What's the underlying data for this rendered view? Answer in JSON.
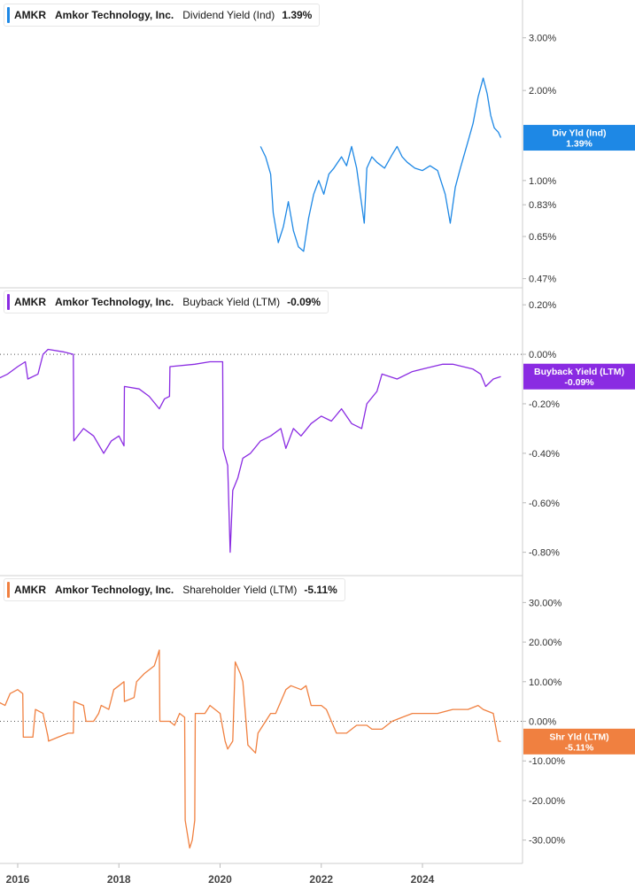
{
  "x_axis": {
    "tick_labels": [
      "2016",
      "2018",
      "2020",
      "2022",
      "2024"
    ]
  },
  "chart_data": [
    {
      "type": "line",
      "ticker": "AMKR",
      "company": "Amkor Technology, Inc.",
      "metric": "Dividend Yield (Ind)",
      "current_value": "1.39%",
      "color": "#1e88e5",
      "scale": "log",
      "ylim": [
        0.45,
        3.8
      ],
      "y_ticks": [
        3.0,
        2.0,
        1.0,
        0.83,
        0.65,
        0.47
      ],
      "y_tick_labels": [
        "3.00%",
        "2.00%",
        "1.00%",
        "0.83%",
        "0.65%",
        "0.47%"
      ],
      "tag": {
        "label": "Div Yld (Ind)",
        "value": "1.39%",
        "y": 1.39
      },
      "series": [
        {
          "values": [
            [
              2020.8,
              1.3
            ],
            [
              2020.9,
              1.2
            ],
            [
              2021.0,
              1.05
            ],
            [
              2021.05,
              0.78
            ],
            [
              2021.15,
              0.62
            ],
            [
              2021.25,
              0.7
            ],
            [
              2021.35,
              0.85
            ],
            [
              2021.45,
              0.68
            ],
            [
              2021.55,
              0.6
            ],
            [
              2021.65,
              0.58
            ],
            [
              2021.75,
              0.75
            ],
            [
              2021.85,
              0.9
            ],
            [
              2021.95,
              1.0
            ],
            [
              2022.05,
              0.9
            ],
            [
              2022.15,
              1.05
            ],
            [
              2022.25,
              1.1
            ],
            [
              2022.4,
              1.2
            ],
            [
              2022.5,
              1.12
            ],
            [
              2022.6,
              1.3
            ],
            [
              2022.7,
              1.1
            ],
            [
              2022.85,
              0.72
            ],
            [
              2022.9,
              1.1
            ],
            [
              2023.0,
              1.2
            ],
            [
              2023.1,
              1.15
            ],
            [
              2023.25,
              1.1
            ],
            [
              2023.4,
              1.22
            ],
            [
              2023.5,
              1.3
            ],
            [
              2023.6,
              1.2
            ],
            [
              2023.7,
              1.15
            ],
            [
              2023.85,
              1.1
            ],
            [
              2024.0,
              1.08
            ],
            [
              2024.15,
              1.12
            ],
            [
              2024.3,
              1.08
            ],
            [
              2024.45,
              0.9
            ],
            [
              2024.55,
              0.72
            ],
            [
              2024.65,
              0.95
            ],
            [
              2024.75,
              1.1
            ],
            [
              2024.9,
              1.35
            ],
            [
              2025.0,
              1.55
            ],
            [
              2025.1,
              1.9
            ],
            [
              2025.2,
              2.2
            ],
            [
              2025.28,
              1.95
            ],
            [
              2025.35,
              1.65
            ],
            [
              2025.42,
              1.5
            ],
            [
              2025.5,
              1.45
            ],
            [
              2025.55,
              1.39
            ]
          ]
        }
      ]
    },
    {
      "type": "line",
      "ticker": "AMKR",
      "company": "Amkor Technology, Inc.",
      "metric": "Buyback Yield (LTM)",
      "current_value": "-0.09%",
      "color": "#8a2be2",
      "ylim": [
        -0.88,
        0.24
      ],
      "y_ticks": [
        0.2,
        0.0,
        -0.2,
        -0.4,
        -0.6,
        -0.8
      ],
      "y_tick_labels": [
        "0.20%",
        "0.00%",
        "-0.20%",
        "-0.40%",
        "-0.60%",
        "-0.80%"
      ],
      "zero_line": true,
      "tag": {
        "label": "Buyback Yield (LTM)",
        "value": "-0.09%",
        "y": -0.09
      },
      "series": [
        {
          "values": [
            [
              2015.6,
              -0.1
            ],
            [
              2015.8,
              -0.08
            ],
            [
              2016.0,
              -0.05
            ],
            [
              2016.15,
              -0.03
            ],
            [
              2016.2,
              -0.1
            ],
            [
              2016.4,
              -0.08
            ],
            [
              2016.5,
              0.0
            ],
            [
              2016.6,
              0.02
            ],
            [
              2016.9,
              0.01
            ],
            [
              2017.1,
              0.0
            ],
            [
              2017.11,
              -0.35
            ],
            [
              2017.3,
              -0.3
            ],
            [
              2017.5,
              -0.33
            ],
            [
              2017.7,
              -0.4
            ],
            [
              2017.85,
              -0.35
            ],
            [
              2018.0,
              -0.33
            ],
            [
              2018.1,
              -0.37
            ],
            [
              2018.11,
              -0.13
            ],
            [
              2018.4,
              -0.14
            ],
            [
              2018.6,
              -0.17
            ],
            [
              2018.8,
              -0.22
            ],
            [
              2018.9,
              -0.18
            ],
            [
              2019.0,
              -0.17
            ],
            [
              2019.01,
              -0.05
            ],
            [
              2019.5,
              -0.04
            ],
            [
              2019.8,
              -0.03
            ],
            [
              2020.05,
              -0.03
            ],
            [
              2020.06,
              -0.38
            ],
            [
              2020.15,
              -0.45
            ],
            [
              2020.2,
              -0.8
            ],
            [
              2020.25,
              -0.55
            ],
            [
              2020.35,
              -0.5
            ],
            [
              2020.45,
              -0.42
            ],
            [
              2020.6,
              -0.4
            ],
            [
              2020.8,
              -0.35
            ],
            [
              2021.0,
              -0.33
            ],
            [
              2021.2,
              -0.3
            ],
            [
              2021.3,
              -0.38
            ],
            [
              2021.45,
              -0.3
            ],
            [
              2021.6,
              -0.33
            ],
            [
              2021.8,
              -0.28
            ],
            [
              2022.0,
              -0.25
            ],
            [
              2022.2,
              -0.27
            ],
            [
              2022.4,
              -0.22
            ],
            [
              2022.6,
              -0.28
            ],
            [
              2022.8,
              -0.3
            ],
            [
              2022.9,
              -0.2
            ],
            [
              2023.1,
              -0.15
            ],
            [
              2023.2,
              -0.08
            ],
            [
              2023.5,
              -0.1
            ],
            [
              2023.8,
              -0.07
            ],
            [
              2024.0,
              -0.06
            ],
            [
              2024.2,
              -0.05
            ],
            [
              2024.4,
              -0.04
            ],
            [
              2024.6,
              -0.04
            ],
            [
              2024.8,
              -0.05
            ],
            [
              2025.0,
              -0.06
            ],
            [
              2025.15,
              -0.08
            ],
            [
              2025.25,
              -0.13
            ],
            [
              2025.4,
              -0.1
            ],
            [
              2025.55,
              -0.09
            ]
          ]
        }
      ]
    },
    {
      "type": "line",
      "ticker": "AMKR",
      "company": "Amkor Technology, Inc.",
      "metric": "Shareholder Yield (LTM)",
      "current_value": "-5.11%",
      "color": "#f08040",
      "ylim": [
        -35,
        35
      ],
      "y_ticks": [
        30,
        20,
        10,
        0,
        -10,
        -20,
        -30
      ],
      "y_tick_labels": [
        "30.00%",
        "20.00%",
        "10.00%",
        "0.00%",
        "-10.00%",
        "-20.00%",
        "-30.00%"
      ],
      "zero_line": true,
      "tag": {
        "label": "Shr Yld (LTM)",
        "value": "-5.11%",
        "y": -5.11
      },
      "series": [
        {
          "values": [
            [
              2015.6,
              5
            ],
            [
              2015.75,
              4
            ],
            [
              2015.85,
              7
            ],
            [
              2016.0,
              8
            ],
            [
              2016.1,
              7
            ],
            [
              2016.11,
              -4
            ],
            [
              2016.3,
              -4
            ],
            [
              2016.35,
              3
            ],
            [
              2016.5,
              2
            ],
            [
              2016.6,
              -4
            ],
            [
              2016.61,
              -5
            ],
            [
              2016.8,
              -4
            ],
            [
              2017.0,
              -3
            ],
            [
              2017.1,
              -3
            ],
            [
              2017.11,
              5
            ],
            [
              2017.3,
              4
            ],
            [
              2017.35,
              0
            ],
            [
              2017.5,
              0
            ],
            [
              2017.6,
              2
            ],
            [
              2017.65,
              4
            ],
            [
              2017.8,
              3
            ],
            [
              2017.9,
              8
            ],
            [
              2018.0,
              9
            ],
            [
              2018.1,
              10
            ],
            [
              2018.11,
              5
            ],
            [
              2018.3,
              6
            ],
            [
              2018.35,
              10
            ],
            [
              2018.5,
              12
            ],
            [
              2018.7,
              14
            ],
            [
              2018.8,
              18
            ],
            [
              2018.81,
              0
            ],
            [
              2019.0,
              0
            ],
            [
              2019.1,
              -1
            ],
            [
              2019.2,
              2
            ],
            [
              2019.3,
              1
            ],
            [
              2019.31,
              -25
            ],
            [
              2019.4,
              -32
            ],
            [
              2019.45,
              -30
            ],
            [
              2019.5,
              -25
            ],
            [
              2019.51,
              2
            ],
            [
              2019.7,
              2
            ],
            [
              2019.8,
              4
            ],
            [
              2020.0,
              2
            ],
            [
              2020.1,
              -5
            ],
            [
              2020.15,
              -7
            ],
            [
              2020.25,
              -5
            ],
            [
              2020.3,
              15
            ],
            [
              2020.4,
              12
            ],
            [
              2020.45,
              10
            ],
            [
              2020.55,
              -6
            ],
            [
              2020.7,
              -8
            ],
            [
              2020.75,
              -3
            ],
            [
              2020.9,
              0
            ],
            [
              2021.0,
              2
            ],
            [
              2021.1,
              2
            ],
            [
              2021.2,
              5
            ],
            [
              2021.3,
              8
            ],
            [
              2021.4,
              9
            ],
            [
              2021.6,
              8
            ],
            [
              2021.7,
              9
            ],
            [
              2021.8,
              4
            ],
            [
              2022.0,
              4
            ],
            [
              2022.1,
              3
            ],
            [
              2022.2,
              0
            ],
            [
              2022.3,
              -3
            ],
            [
              2022.5,
              -3
            ],
            [
              2022.7,
              -1
            ],
            [
              2022.9,
              -1
            ],
            [
              2023.0,
              -2
            ],
            [
              2023.2,
              -2
            ],
            [
              2023.4,
              0
            ],
            [
              2023.6,
              1
            ],
            [
              2023.8,
              2
            ],
            [
              2024.0,
              2
            ],
            [
              2024.3,
              2
            ],
            [
              2024.6,
              3
            ],
            [
              2024.9,
              3
            ],
            [
              2025.1,
              4
            ],
            [
              2025.2,
              3
            ],
            [
              2025.4,
              2
            ],
            [
              2025.5,
              -5
            ],
            [
              2025.55,
              -5.11
            ]
          ]
        }
      ]
    }
  ]
}
